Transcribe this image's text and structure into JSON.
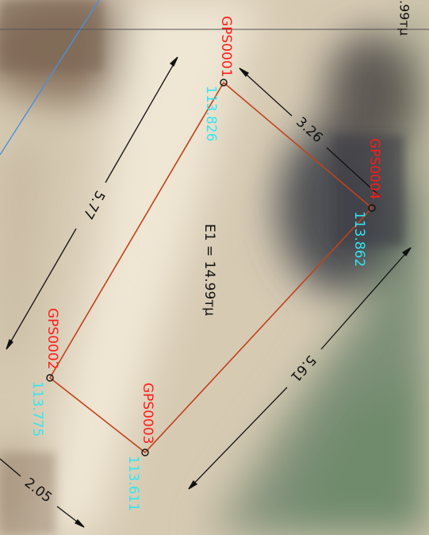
{
  "parcel": {
    "area_label": "E1 = 14.99тµ",
    "top_cut_label": ".99тµ",
    "points": [
      {
        "name": "GPS0001",
        "elevation": "113.826"
      },
      {
        "name": "GPS0004",
        "elevation": "113.862"
      },
      {
        "name": "GPS0002",
        "elevation": "113.775"
      },
      {
        "name": "GPS0003",
        "elevation": "113.611"
      }
    ],
    "dimensions": [
      "5.77",
      "3.26",
      "5.61",
      "2.05"
    ]
  },
  "colors": {
    "boundary": "#c0421c",
    "point_name": "#ff1a1a",
    "elevation": "#33e6f0",
    "dimension": "#111111",
    "blue_line": "#4a8fe0",
    "background": "#d9cdb6"
  }
}
